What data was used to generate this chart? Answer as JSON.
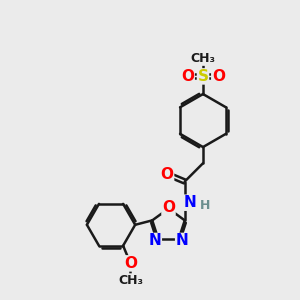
{
  "bg_color": "#ebebeb",
  "atom_colors": {
    "C": "#1a1a1a",
    "N": "#0000ff",
    "O": "#ff0000",
    "S": "#cccc00",
    "H": "#6b8e8e"
  },
  "bond_color": "#1a1a1a",
  "bond_width": 1.8,
  "font_size_atom": 11,
  "font_size_small": 9,
  "font_size_ch3": 9
}
